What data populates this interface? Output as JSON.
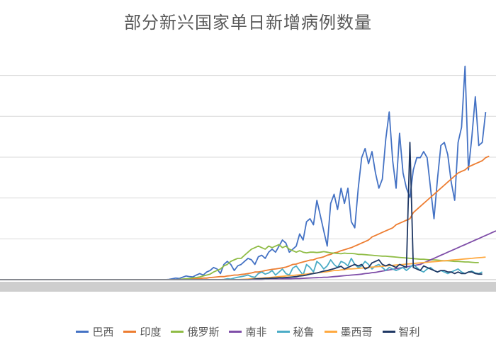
{
  "chart_data": {
    "type": "line",
    "title": "部分新兴国家单日新增病例数量",
    "xlabel": "",
    "ylabel": "",
    "grid": true,
    "legend_position": "bottom",
    "series": [
      {
        "name": "巴西",
        "color": "#4472C4",
        "values": [
          0,
          0,
          0,
          0,
          0,
          0,
          0,
          0,
          0,
          0,
          0,
          0,
          0,
          0,
          0,
          0,
          0,
          0,
          0,
          0,
          0,
          0,
          0,
          0,
          0,
          0,
          0,
          0,
          0,
          0,
          0,
          0,
          0,
          0,
          0,
          0,
          0,
          0,
          0,
          0,
          0,
          0,
          0,
          0,
          0,
          0,
          0,
          0,
          0,
          100,
          300,
          500,
          400,
          800,
          1200,
          1000,
          900,
          1500,
          2000,
          1500,
          2500,
          3000,
          4000,
          3500,
          2000,
          5000,
          6000,
          5000,
          3000,
          4500,
          5000,
          6000,
          7000,
          6500,
          5000,
          7500,
          8000,
          7000,
          9000,
          10000,
          9000,
          11000,
          13000,
          12000,
          9000,
          10000,
          11000,
          15000,
          13000,
          19000,
          20000,
          18000,
          26000,
          21000,
          16000,
          11000,
          25000,
          28000,
          23000,
          30000,
          25000,
          30000,
          19000,
          17000,
          30000,
          40000,
          43000,
          38000,
          42000,
          35000,
          30000,
          33000,
          46000,
          55000,
          39000,
          30000,
          48000,
          35000,
          30000,
          27000,
          36000,
          40000,
          40000,
          42000,
          40000,
          30000,
          20000,
          33000,
          44000,
          45000,
          41000,
          32000,
          26000,
          45000,
          50000,
          70000,
          36000,
          47000,
          60000,
          44000,
          45000,
          55000
        ]
      },
      {
        "name": "印度",
        "color": "#ED7D31",
        "values": [
          0,
          0,
          0,
          0,
          0,
          0,
          0,
          0,
          0,
          0,
          0,
          0,
          0,
          0,
          0,
          0,
          0,
          0,
          0,
          0,
          0,
          0,
          0,
          0,
          0,
          0,
          0,
          0,
          0,
          0,
          0,
          0,
          0,
          0,
          0,
          0,
          0,
          0,
          0,
          0,
          0,
          0,
          0,
          0,
          0,
          0,
          0,
          0,
          0,
          0,
          0,
          0,
          50,
          100,
          100,
          200,
          300,
          300,
          400,
          500,
          500,
          700,
          800,
          900,
          1000,
          1000,
          1200,
          1300,
          1500,
          1500,
          1700,
          1800,
          2000,
          2200,
          2500,
          2500,
          2700,
          3000,
          3200,
          3400,
          3500,
          3700,
          3900,
          4100,
          4500,
          5000,
          5100,
          5500,
          5800,
          6100,
          6400,
          6500,
          7000,
          7200,
          7500,
          8000,
          8300,
          8800,
          9000,
          9500,
          9800,
          10200,
          10500,
          11000,
          11500,
          12000,
          12500,
          13000,
          14000,
          14500,
          15000,
          15500,
          16000,
          16500,
          17000,
          18000,
          18500,
          19000,
          19500,
          20000,
          22000,
          23000,
          24000,
          25000,
          26000,
          27000,
          28000,
          29000,
          30000,
          31000,
          32000,
          33000,
          34000,
          35000,
          35500,
          36000,
          37000,
          37500,
          38000,
          38500,
          39000,
          40000,
          40500
        ]
      },
      {
        "name": "俄罗斯",
        "color": "#8FBC45",
        "values": [
          0,
          0,
          0,
          0,
          0,
          0,
          0,
          0,
          0,
          0,
          0,
          0,
          0,
          0,
          0,
          0,
          0,
          0,
          0,
          0,
          0,
          0,
          0,
          0,
          0,
          0,
          0,
          0,
          0,
          0,
          0,
          0,
          0,
          0,
          0,
          0,
          0,
          0,
          0,
          0,
          0,
          0,
          0,
          0,
          0,
          0,
          0,
          0,
          0,
          0,
          0,
          0,
          100,
          200,
          300,
          400,
          600,
          700,
          900,
          1200,
          1500,
          1800,
          2500,
          3000,
          3500,
          4500,
          5000,
          6000,
          6500,
          7000,
          7000,
          8000,
          9000,
          10000,
          10500,
          11000,
          10500,
          10000,
          11000,
          10500,
          11000,
          11500,
          10500,
          11000,
          10000,
          9500,
          9000,
          9500,
          9000,
          8800,
          9000,
          9000,
          8900,
          9000,
          9200,
          9000,
          8800,
          8700,
          8600,
          8500,
          8700,
          8600,
          8600,
          8500,
          8300,
          8300,
          8200,
          8100,
          8000,
          7900,
          7800,
          7700,
          7700,
          7600,
          7500,
          7400,
          7300,
          7200,
          7100,
          7000,
          6900,
          6800,
          6700,
          6700,
          6600,
          6500,
          6500,
          6400,
          6300,
          6200,
          6200,
          6100,
          6000,
          6000,
          5900,
          5800,
          5800,
          5700,
          5600,
          5600
        ]
      },
      {
        "name": "南非",
        "color": "#7F4EA8",
        "values": [
          0,
          0,
          0,
          0,
          0,
          0,
          0,
          0,
          0,
          0,
          0,
          0,
          0,
          0,
          0,
          0,
          0,
          0,
          0,
          0,
          0,
          0,
          0,
          0,
          0,
          0,
          0,
          0,
          0,
          0,
          0,
          0,
          0,
          0,
          0,
          0,
          0,
          0,
          0,
          0,
          0,
          0,
          0,
          0,
          0,
          0,
          0,
          0,
          0,
          0,
          0,
          0,
          0,
          0,
          0,
          0,
          0,
          0,
          0,
          0,
          0,
          0,
          0,
          0,
          0,
          0,
          0,
          0,
          0,
          0,
          0,
          0,
          0,
          0,
          0,
          0,
          0,
          100,
          100,
          150,
          200,
          200,
          250,
          300,
          300,
          350,
          400,
          400,
          450,
          500,
          550,
          600,
          650,
          700,
          800,
          800,
          900,
          1000,
          1100,
          1200,
          1300,
          1400,
          1500,
          1600,
          1700,
          1800,
          2000,
          2100,
          2300,
          2400,
          2600,
          2800,
          3000,
          3200,
          3400,
          3600,
          3800,
          4000,
          4200,
          4400,
          4600,
          4800,
          5000,
          5500,
          6000,
          6500,
          7000,
          7500,
          8000,
          8500,
          9000,
          9500,
          10000,
          10500,
          11000,
          11500,
          12000,
          12500,
          13000,
          13500,
          14000,
          14500,
          15000,
          15500,
          16000
        ]
      },
      {
        "name": "秘鲁",
        "color": "#4BACC6",
        "values": [
          0,
          0,
          0,
          0,
          0,
          0,
          0,
          0,
          0,
          0,
          0,
          0,
          0,
          0,
          0,
          0,
          0,
          0,
          0,
          0,
          0,
          0,
          0,
          0,
          0,
          0,
          0,
          0,
          0,
          0,
          0,
          0,
          0,
          0,
          0,
          0,
          0,
          0,
          0,
          0,
          0,
          0,
          0,
          0,
          0,
          0,
          0,
          0,
          0,
          0,
          0,
          0,
          0,
          0,
          0,
          0,
          0,
          0,
          0,
          0,
          0,
          0,
          0,
          0,
          0,
          100,
          300,
          200,
          500,
          800,
          1000,
          1200,
          1500,
          1000,
          800,
          2000,
          2500,
          1800,
          2200,
          3000,
          1500,
          2500,
          3500,
          2000,
          1500,
          3800,
          4500,
          3000,
          1500,
          5000,
          4000,
          2500,
          6000,
          5000,
          3500,
          4500,
          6500,
          5000,
          4000,
          6000,
          5500,
          4500,
          7000,
          5000,
          4000,
          4500,
          6000,
          5000,
          3500,
          4500,
          5000,
          4000,
          3000,
          4000,
          3500,
          3000,
          3500,
          4000,
          3000,
          4000,
          5000,
          4000,
          3000,
          2500,
          3500,
          4000,
          3000,
          2500,
          3000,
          2500,
          2000,
          2500,
          3000,
          3500,
          2500,
          2000,
          2500,
          2800,
          2200,
          2000,
          2500
        ]
      },
      {
        "name": "墨西哥",
        "color": "#FFA940",
        "values": [
          0,
          0,
          0,
          0,
          0,
          0,
          0,
          0,
          0,
          0,
          0,
          0,
          0,
          0,
          0,
          0,
          0,
          0,
          0,
          0,
          0,
          0,
          0,
          0,
          0,
          0,
          0,
          0,
          0,
          0,
          0,
          0,
          0,
          0,
          0,
          0,
          0,
          0,
          0,
          0,
          0,
          0,
          0,
          0,
          0,
          0,
          0,
          0,
          0,
          0,
          0,
          0,
          0,
          0,
          0,
          0,
          0,
          0,
          0,
          0,
          0,
          0,
          0,
          0,
          0,
          0,
          0,
          0,
          0,
          0,
          100,
          150,
          200,
          300,
          400,
          400,
          500,
          600,
          700,
          800,
          900,
          1000,
          1100,
          1200,
          1300,
          1400,
          1500,
          1600,
          1700,
          1800,
          2000,
          2100,
          2200,
          2400,
          2500,
          2600,
          2800,
          3000,
          3000,
          3200,
          3300,
          3500,
          3500,
          3600,
          3700,
          3800,
          3900,
          4000,
          4100,
          4200,
          4300,
          4400,
          4500,
          4600,
          4700,
          4800,
          4900,
          5000,
          5100,
          5200,
          5300,
          5400,
          5500,
          5600,
          5700,
          5800,
          5900,
          6000,
          6100,
          6200,
          6300,
          6400,
          6500,
          6600,
          6700,
          6800,
          6900,
          7000,
          7100,
          7200,
          7300,
          7400
        ]
      },
      {
        "name": "智利",
        "color": "#1F3864",
        "values": [
          0,
          0,
          0,
          0,
          0,
          0,
          0,
          0,
          0,
          0,
          0,
          0,
          0,
          0,
          0,
          0,
          0,
          0,
          0,
          0,
          0,
          0,
          0,
          0,
          0,
          0,
          0,
          0,
          0,
          0,
          0,
          0,
          0,
          0,
          0,
          0,
          0,
          0,
          0,
          0,
          0,
          0,
          0,
          0,
          0,
          0,
          0,
          0,
          0,
          0,
          0,
          0,
          0,
          0,
          0,
          0,
          0,
          0,
          0,
          0,
          0,
          0,
          0,
          0,
          0,
          0,
          0,
          0,
          0,
          0,
          0,
          0,
          0,
          100,
          200,
          300,
          300,
          400,
          400,
          500,
          500,
          600,
          600,
          700,
          800,
          900,
          1000,
          1200,
          1300,
          1500,
          1800,
          2000,
          2200,
          2500,
          2800,
          3000,
          3300,
          3600,
          4000,
          4400,
          3500,
          4000,
          4500,
          5000,
          4500,
          5000,
          3500,
          4000,
          5500,
          6000,
          6500,
          5000,
          4500,
          5000,
          4500,
          4000,
          5000,
          4500,
          4000,
          45000,
          4000,
          3500,
          3000,
          4500,
          4000,
          3500,
          3000,
          2500,
          3000,
          3000,
          2500,
          2500,
          2000,
          2500,
          2000,
          2000,
          2500,
          2500,
          2000,
          1800,
          1800
        ]
      }
    ]
  }
}
